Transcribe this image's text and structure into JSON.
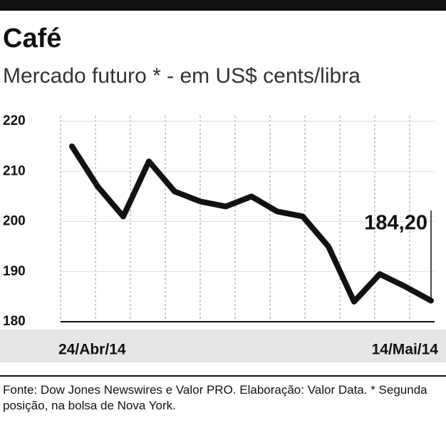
{
  "chart_data": {
    "type": "line",
    "title": "Café",
    "subtitle": "Mercado futuro * - em US$ cents/libra",
    "categories": [
      "24/Abr/14",
      null,
      null,
      null,
      null,
      null,
      null,
      null,
      null,
      null,
      null,
      null,
      null,
      null,
      "14/Mai/14"
    ],
    "series": [
      {
        "name": "Café",
        "color": "#111111",
        "values": [
          215,
          207,
          201,
          212,
          206,
          204,
          203,
          205,
          202,
          201,
          195,
          184,
          189.5,
          187,
          184.2
        ],
        "value_labels": [
          null,
          null,
          null,
          null,
          null,
          null,
          null,
          null,
          null,
          null,
          null,
          null,
          null,
          null,
          "184,20"
        ]
      }
    ],
    "ylim": [
      180,
      220
    ],
    "yticks": [
      180,
      190,
      200,
      210,
      220
    ],
    "grid": true,
    "source": "Fonte: Dow Jones Newswires e Valor PRO. Elaboração: Valor Data. * Segunda posição, na bolsa de Nova York."
  }
}
